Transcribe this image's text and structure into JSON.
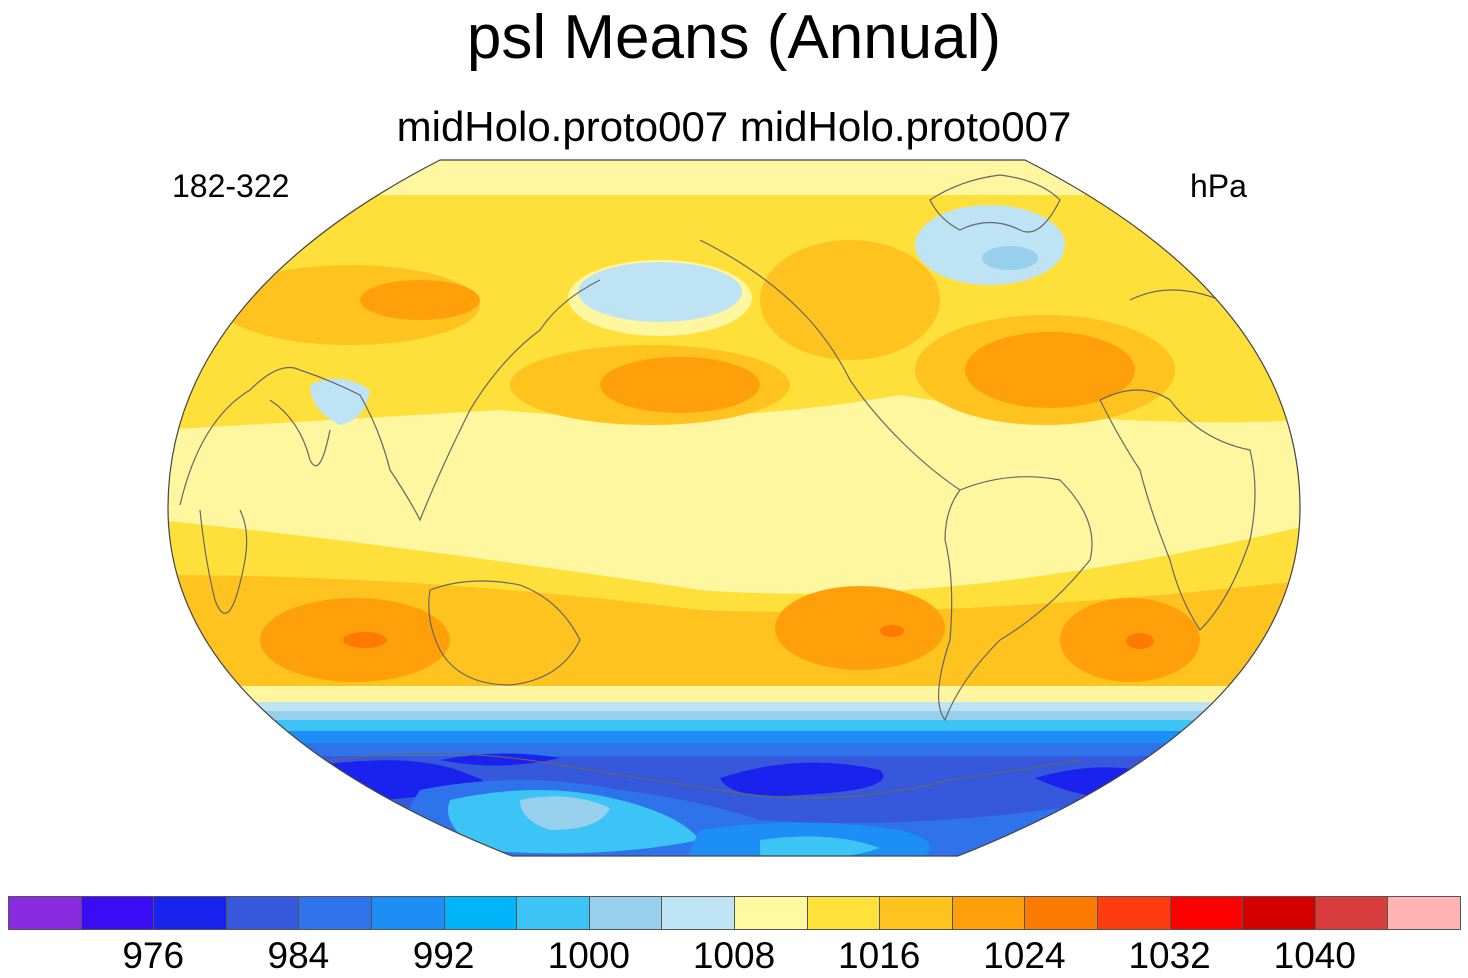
{
  "title": "psl Means (Annual)",
  "subtitle": "midHolo.proto007  midHolo.proto007",
  "left_label": "182-322",
  "right_label": "hPa",
  "colorbar": {
    "colors": [
      "#8a2be2",
      "#3a0cf5",
      "#1a22ee",
      "#3558dc",
      "#2e73ec",
      "#1c8ef5",
      "#00b4fa",
      "#3cc4f6",
      "#96d0ec",
      "#bde3f4",
      "#fff9a0",
      "#ffe13a",
      "#ffc31f",
      "#ffa00a",
      "#ff7a00",
      "#ff3c10",
      "#ff0000",
      "#d40000",
      "#d93c3c",
      "#ffb4b4"
    ],
    "tick_labels": [
      "976",
      "984",
      "992",
      "1000",
      "1008",
      "1016",
      "1024",
      "1032",
      "1040"
    ]
  },
  "map": {
    "projection": "robinson",
    "coastlines": true,
    "outline_color": "#444444"
  }
}
